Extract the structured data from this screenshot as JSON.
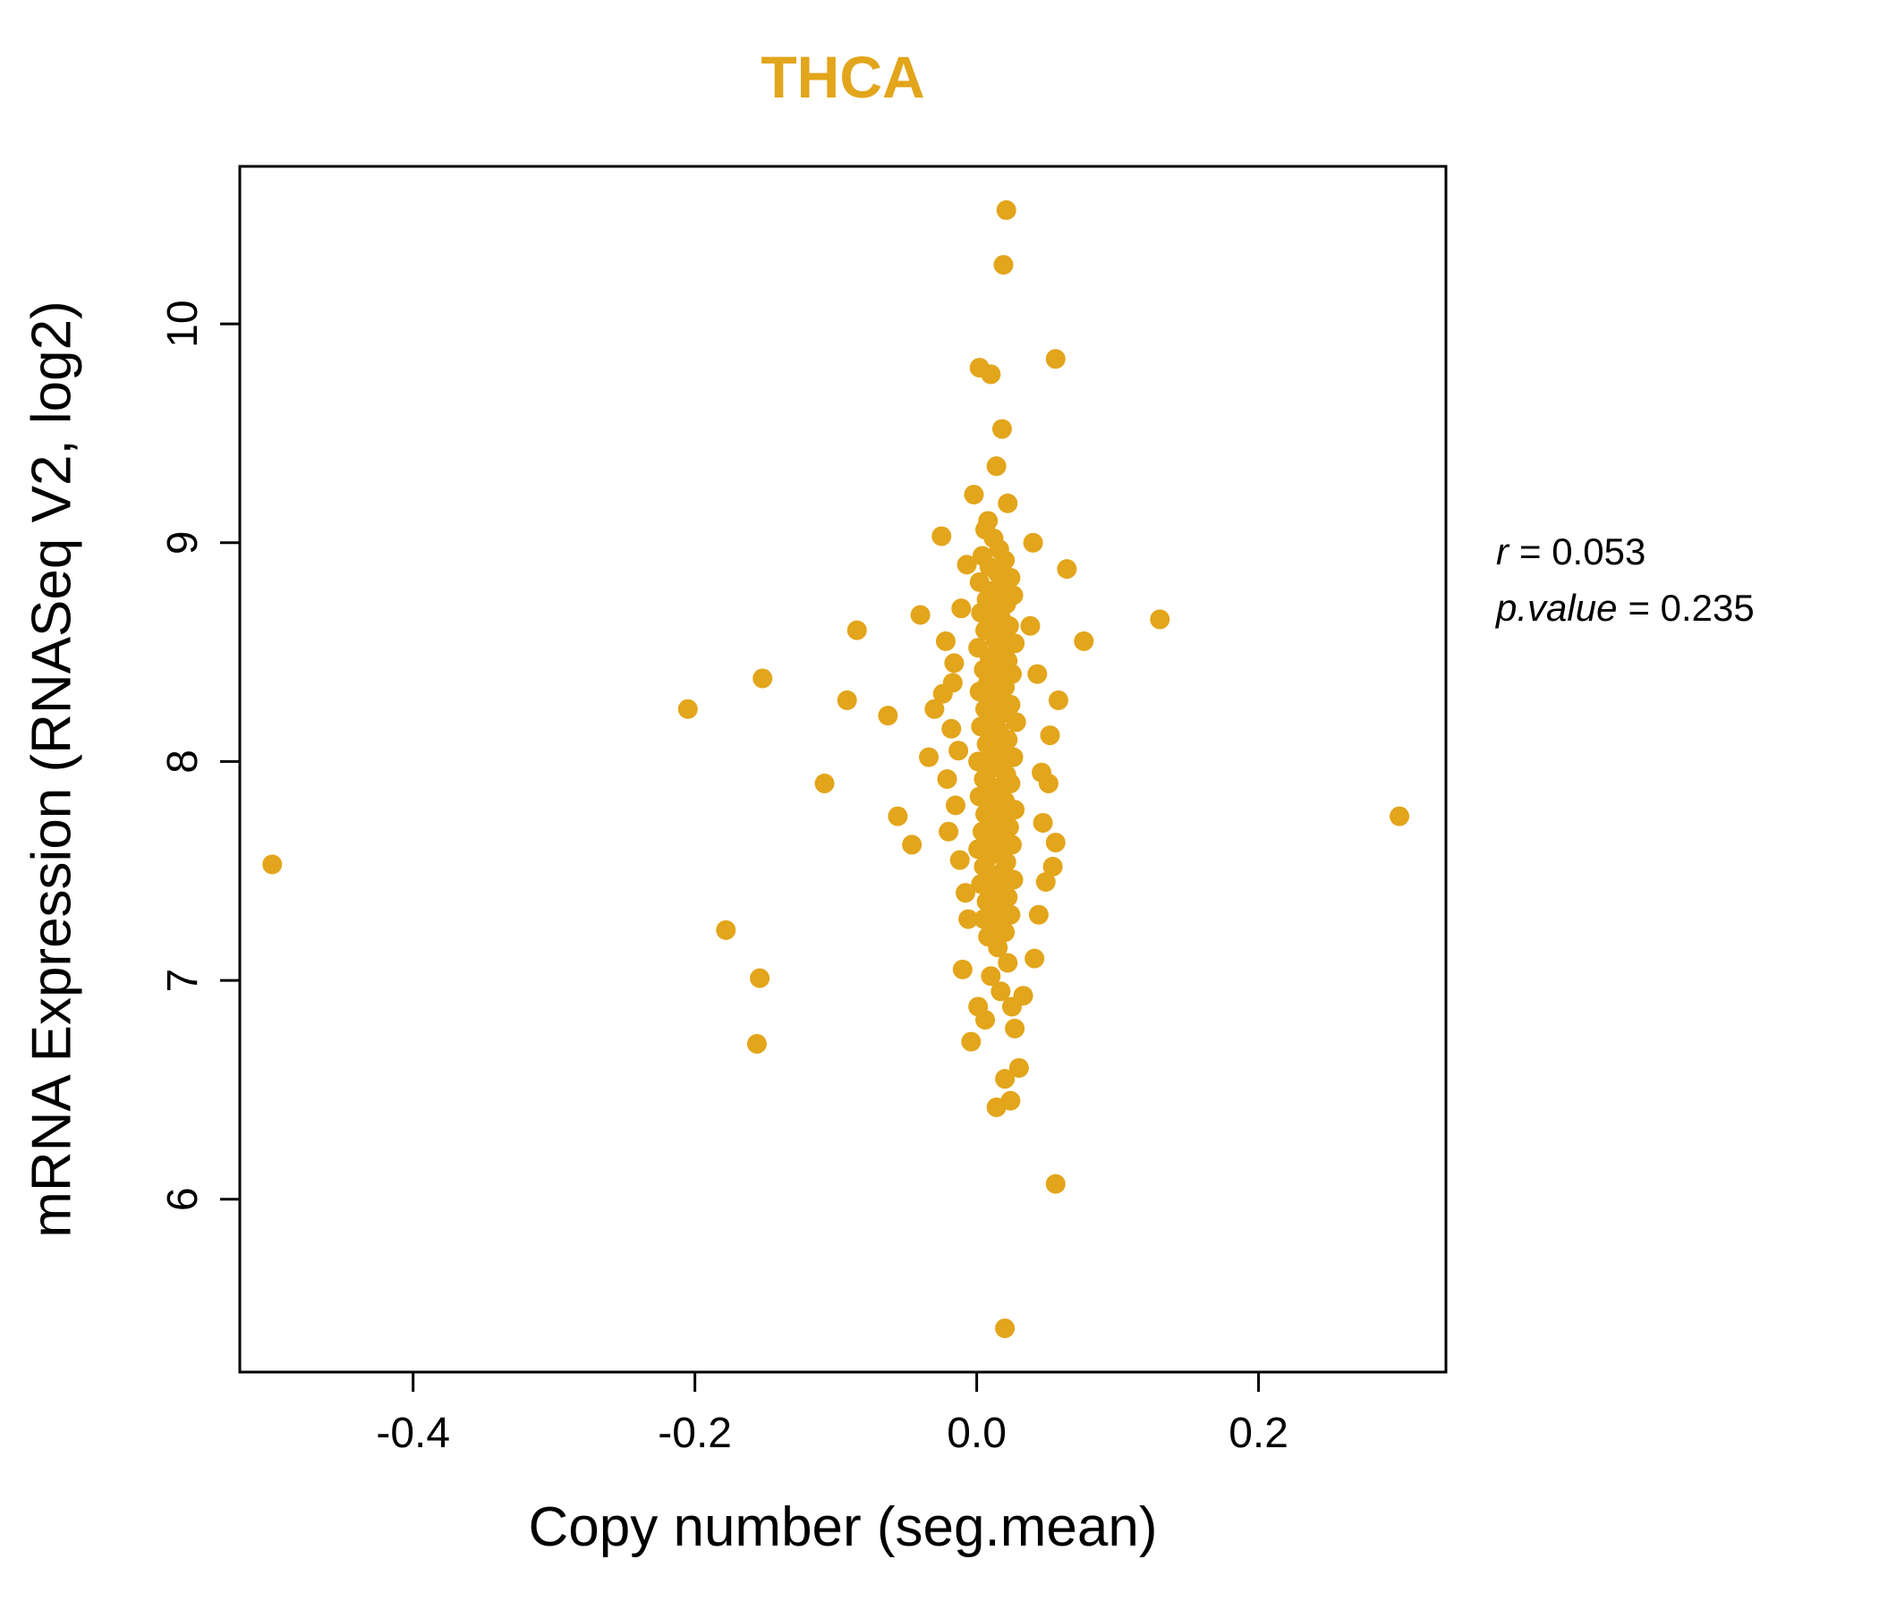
{
  "chart_data": {
    "type": "scatter",
    "title": "THCA",
    "xlabel": "Copy number (seg.mean)",
    "ylabel": "mRNA Expression (RNASeq V2, log2)",
    "xlim": [
      -0.523,
      0.333
    ],
    "ylim": [
      5.21,
      10.72
    ],
    "grid": false,
    "xticks": {
      "values": [
        -0.4,
        -0.2,
        0.0,
        0.2
      ],
      "labels": [
        "-0.4",
        "-0.2",
        "0.0",
        "0.2"
      ]
    },
    "yticks": {
      "values": [
        6,
        7,
        8,
        9,
        10
      ],
      "labels": [
        "6",
        "7",
        "8",
        "9",
        "10"
      ]
    },
    "point_color": "#E2A51B",
    "title_color": "#E2A51B",
    "points": [
      [
        -0.5,
        7.53
      ],
      [
        0.3,
        7.75
      ],
      [
        0.021,
        10.52
      ],
      [
        0.019,
        10.27
      ],
      [
        0.056,
        9.84
      ],
      [
        0.002,
        9.8
      ],
      [
        0.01,
        9.77
      ],
      [
        0.018,
        9.52
      ],
      [
        0.014,
        9.35
      ],
      [
        -0.002,
        9.22
      ],
      [
        0.022,
        9.18
      ],
      [
        0.008,
        9.1
      ],
      [
        0.02,
        5.41
      ],
      [
        0.056,
        6.07
      ],
      [
        -0.205,
        8.24
      ],
      [
        -0.152,
        8.38
      ],
      [
        -0.178,
        7.23
      ],
      [
        -0.154,
        7.01
      ],
      [
        -0.156,
        6.71
      ],
      [
        -0.108,
        7.9
      ],
      [
        -0.085,
        8.6
      ],
      [
        -0.092,
        8.28
      ],
      [
        -0.063,
        8.21
      ],
      [
        0.13,
        8.65
      ],
      [
        0.076,
        8.55
      ],
      [
        0.064,
        8.88
      ],
      [
        0.058,
        8.28
      ],
      [
        -0.04,
        8.67
      ],
      [
        -0.056,
        7.75
      ],
      [
        -0.046,
        7.62
      ],
      [
        -0.025,
        9.03
      ],
      [
        -0.03,
        8.24
      ],
      [
        -0.034,
        8.02
      ],
      [
        -0.02,
        7.68
      ],
      [
        0.03,
        6.6
      ],
      [
        0.024,
        6.45
      ],
      [
        0.014,
        6.42
      ],
      [
        0.02,
        6.55
      ],
      [
        -0.004,
        6.72
      ],
      [
        0.001,
        6.88
      ],
      [
        -0.01,
        7.05
      ],
      [
        0.033,
        6.93
      ],
      [
        0.027,
        6.78
      ],
      [
        0.046,
        7.95
      ],
      [
        0.051,
        7.9
      ],
      [
        0.056,
        7.63
      ],
      [
        0.049,
        7.45
      ],
      [
        0.044,
        7.3
      ],
      [
        0.041,
        7.1
      ],
      [
        0.052,
        8.12
      ],
      [
        0.043,
        8.4
      ],
      [
        0.038,
        8.62
      ],
      [
        0.047,
        7.72
      ],
      [
        0.054,
        7.52
      ],
      [
        0.04,
        9.0
      ],
      [
        -0.022,
        8.55
      ],
      [
        -0.016,
        8.45
      ],
      [
        -0.024,
        8.31
      ],
      [
        -0.018,
        8.15
      ],
      [
        -0.013,
        8.05
      ],
      [
        -0.021,
        7.92
      ],
      [
        -0.015,
        7.8
      ],
      [
        -0.012,
        7.55
      ],
      [
        -0.008,
        7.4
      ],
      [
        -0.006,
        7.28
      ],
      [
        -0.017,
        8.36
      ],
      [
        -0.011,
        8.7
      ],
      [
        -0.007,
        8.9
      ],
      [
        0.006,
        9.06
      ],
      [
        0.012,
        9.02
      ],
      [
        0.016,
        8.97
      ],
      [
        0.004,
        8.94
      ],
      [
        0.02,
        8.92
      ],
      [
        0.009,
        8.89
      ],
      [
        0.015,
        8.86
      ],
      [
        0.024,
        8.84
      ],
      [
        0.002,
        8.82
      ],
      [
        0.018,
        8.8
      ],
      [
        0.011,
        8.78
      ],
      [
        0.026,
        8.76
      ],
      [
        0.007,
        8.74
      ],
      [
        0.021,
        8.72
      ],
      [
        0.014,
        8.7
      ],
      [
        0.003,
        8.68
      ],
      [
        0.017,
        8.66
      ],
      [
        0.01,
        8.64
      ],
      [
        0.023,
        8.62
      ],
      [
        0.006,
        8.6
      ],
      [
        0.019,
        8.58
      ],
      [
        0.013,
        8.56
      ],
      [
        0.027,
        8.54
      ],
      [
        0.001,
        8.52
      ],
      [
        0.016,
        8.5
      ],
      [
        0.009,
        8.48
      ],
      [
        0.022,
        8.46
      ],
      [
        0.012,
        8.44
      ],
      [
        0.005,
        8.42
      ],
      [
        0.025,
        8.4
      ],
      [
        0.015,
        8.38
      ],
      [
        0.008,
        8.36
      ],
      [
        0.02,
        8.34
      ],
      [
        0.002,
        8.32
      ],
      [
        0.017,
        8.3
      ],
      [
        0.011,
        8.28
      ],
      [
        0.024,
        8.26
      ],
      [
        0.006,
        8.24
      ],
      [
        0.019,
        8.22
      ],
      [
        0.013,
        8.2
      ],
      [
        0.028,
        8.18
      ],
      [
        0.003,
        8.16
      ],
      [
        0.016,
        8.14
      ],
      [
        0.01,
        8.12
      ],
      [
        0.022,
        8.1
      ],
      [
        0.007,
        8.08
      ],
      [
        0.018,
        8.06
      ],
      [
        0.012,
        8.04
      ],
      [
        0.026,
        8.02
      ],
      [
        0.001,
        8.0
      ],
      [
        0.015,
        7.98
      ],
      [
        0.009,
        7.96
      ],
      [
        0.021,
        7.94
      ],
      [
        0.005,
        7.92
      ],
      [
        0.024,
        7.9
      ],
      [
        0.013,
        7.88
      ],
      [
        0.017,
        7.86
      ],
      [
        0.002,
        7.84
      ],
      [
        0.02,
        7.82
      ],
      [
        0.011,
        7.8
      ],
      [
        0.027,
        7.78
      ],
      [
        0.006,
        7.76
      ],
      [
        0.016,
        7.74
      ],
      [
        0.01,
        7.72
      ],
      [
        0.023,
        7.7
      ],
      [
        0.004,
        7.68
      ],
      [
        0.018,
        7.66
      ],
      [
        0.012,
        7.64
      ],
      [
        0.025,
        7.62
      ],
      [
        0.001,
        7.6
      ],
      [
        0.015,
        7.58
      ],
      [
        0.008,
        7.56
      ],
      [
        0.021,
        7.54
      ],
      [
        0.005,
        7.52
      ],
      [
        0.019,
        7.5
      ],
      [
        0.013,
        7.48
      ],
      [
        0.026,
        7.46
      ],
      [
        0.003,
        7.44
      ],
      [
        0.017,
        7.42
      ],
      [
        0.01,
        7.4
      ],
      [
        0.022,
        7.38
      ],
      [
        0.007,
        7.36
      ],
      [
        0.016,
        7.34
      ],
      [
        0.011,
        7.32
      ],
      [
        0.024,
        7.3
      ],
      [
        0.005,
        7.28
      ],
      [
        0.018,
        7.26
      ],
      [
        0.013,
        7.24
      ],
      [
        0.02,
        7.22
      ],
      [
        0.008,
        7.2
      ],
      [
        0.015,
        7.15
      ],
      [
        0.022,
        7.08
      ],
      [
        0.01,
        7.02
      ],
      [
        0.017,
        6.95
      ],
      [
        0.025,
        6.88
      ],
      [
        0.006,
        6.82
      ]
    ]
  },
  "annotation": {
    "r_var": "r",
    "r_rest": "= 0.053",
    "p_var": "p.value",
    "p_rest": "= 0.235"
  }
}
